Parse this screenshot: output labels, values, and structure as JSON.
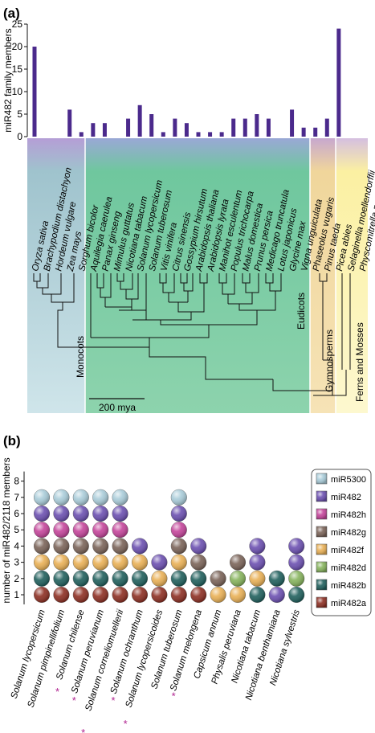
{
  "panel_a_label": "(a)",
  "panel_b_label": "(b)",
  "chart_data": [
    {
      "type": "bar",
      "panel": "(a)",
      "ylabel": "miR482 family members",
      "ylim": [
        0,
        25
      ],
      "yticks": [
        0,
        5,
        10,
        15,
        20,
        25
      ],
      "categories": [
        "Oryza sativa",
        "Brachypodium distachyon",
        "Hordeum vulgare",
        "Zea mays",
        "Sorghum bicolor",
        "Aquilegia caerulea",
        "Panax ginseng",
        "Mimulus guttatus",
        "Nicotiana tabacum",
        "Solanum lycopersicum",
        "Solanum tuberosum",
        "Vitis vinifera",
        "Citrus sinensis",
        "Gossypium hirsutum",
        "Arabidopsis thaliana",
        "Arabidopsis lyrata",
        "Manihot esculentum",
        "Populus trichocarpa",
        "Malus domestica",
        "Prunus persica",
        "Medicago truncatula",
        "Lotus japonicus",
        "Glycine max",
        "Vigna unguiculata",
        "Phaseolus vugaris",
        "Pinus taeda",
        "Picea abies",
        "Selaginella moellendorffii",
        "Physcomitrella patens"
      ],
      "values": [
        20,
        0,
        0,
        6,
        1,
        3,
        3,
        0,
        4,
        7,
        5,
        1,
        4,
        3,
        1,
        1,
        1,
        4,
        4,
        5,
        4,
        0,
        6,
        2,
        2,
        4,
        24,
        0,
        0
      ],
      "bar_color": "#4b2a8c",
      "groups": [
        {
          "label": "Monocots",
          "color": "#a6c8cf"
        },
        {
          "label": "Eudicots",
          "color": "#7fc9a1"
        },
        {
          "label": "Gymnosperms",
          "color": "#efd59a"
        },
        {
          "label": "Ferns and Mosses",
          "color": "#fbf2a8"
        }
      ],
      "scale_label": "200 mya"
    },
    {
      "type": "stacked-dot",
      "panel": "(b)",
      "ylabel": "number of miR482/2118 members",
      "yticks": [
        1,
        2,
        3,
        4,
        5,
        6,
        7,
        8
      ],
      "legend_position": "right",
      "legend": [
        {
          "name": "miR5300",
          "color": "#a9ccd9"
        },
        {
          "name": "miR482",
          "color": "#6b4fb0"
        },
        {
          "name": "miR482h",
          "color": "#c4449a"
        },
        {
          "name": "miR482g",
          "color": "#7a6358"
        },
        {
          "name": "miR482f",
          "color": "#e9b055"
        },
        {
          "name": "miR482d",
          "color": "#86b35c"
        },
        {
          "name": "miR482b",
          "color": "#1f5f5c"
        },
        {
          "name": "miR482a",
          "color": "#8c2e22"
        }
      ],
      "species": [
        {
          "name": "Solanum lycopersicum",
          "marked": false,
          "members": [
            "miR482a",
            "miR482b",
            "miR482f",
            "miR482g",
            "miR482h",
            "miR482",
            "miR5300"
          ]
        },
        {
          "name": "Solanum pimpinellifolium",
          "marked": false,
          "members": [
            "miR482a",
            "miR482b",
            "miR482f",
            "miR482g",
            "miR482h",
            "miR482",
            "miR5300"
          ]
        },
        {
          "name": "Solanum chilense",
          "marked": true,
          "members": [
            "miR482a",
            "miR482b",
            "miR482f",
            "miR482g",
            "miR482h",
            "miR482",
            "miR5300"
          ]
        },
        {
          "name": "Solanum peruvianum",
          "marked": true,
          "members": [
            "miR482a",
            "miR482b",
            "miR482f",
            "miR482g",
            "miR482h",
            "miR482",
            "miR5300"
          ]
        },
        {
          "name": "Solanum corneliomuellerii",
          "marked": true,
          "members": [
            "miR482a",
            "miR482b",
            "miR482f",
            "miR482g",
            "miR482h",
            "miR482",
            "miR5300"
          ]
        },
        {
          "name": "Solanum ochranthum",
          "marked": true,
          "members": [
            "miR482a",
            "miR482b",
            "miR482f",
            "miR482"
          ]
        },
        {
          "name": "Solanum lycopersicoides",
          "marked": true,
          "members": [
            "miR482a",
            "miR482f",
            "miR482"
          ]
        },
        {
          "name": "Solanum tuberosum",
          "marked": false,
          "members": [
            "miR482a",
            "miR482b",
            "miR482f",
            "miR482g",
            "miR482h",
            "miR482",
            "miR5300"
          ]
        },
        {
          "name": "Solanum melongena",
          "marked": true,
          "members": [
            "miR482a",
            "miR482b",
            "miR482g",
            "miR482"
          ]
        },
        {
          "name": "Capsicum annum",
          "marked": false,
          "members": [
            "miR482f",
            "miR482g"
          ]
        },
        {
          "name": "Physalis peruviana",
          "marked": false,
          "members": [
            "miR482f",
            "miR482d",
            "miR482g"
          ]
        },
        {
          "name": "Nicotiana tabacum",
          "marked": false,
          "members": [
            "miR482b",
            "miR482f",
            "miR482",
            "miR482"
          ]
        },
        {
          "name": "Nicotiana benthamiana",
          "marked": false,
          "members": [
            "miR482",
            "miR482b"
          ]
        },
        {
          "name": "Nicotiana sylvestris",
          "marked": false,
          "members": [
            "miR482b",
            "miR482d",
            "miR482",
            "miR482"
          ]
        }
      ],
      "marker": "*"
    }
  ]
}
